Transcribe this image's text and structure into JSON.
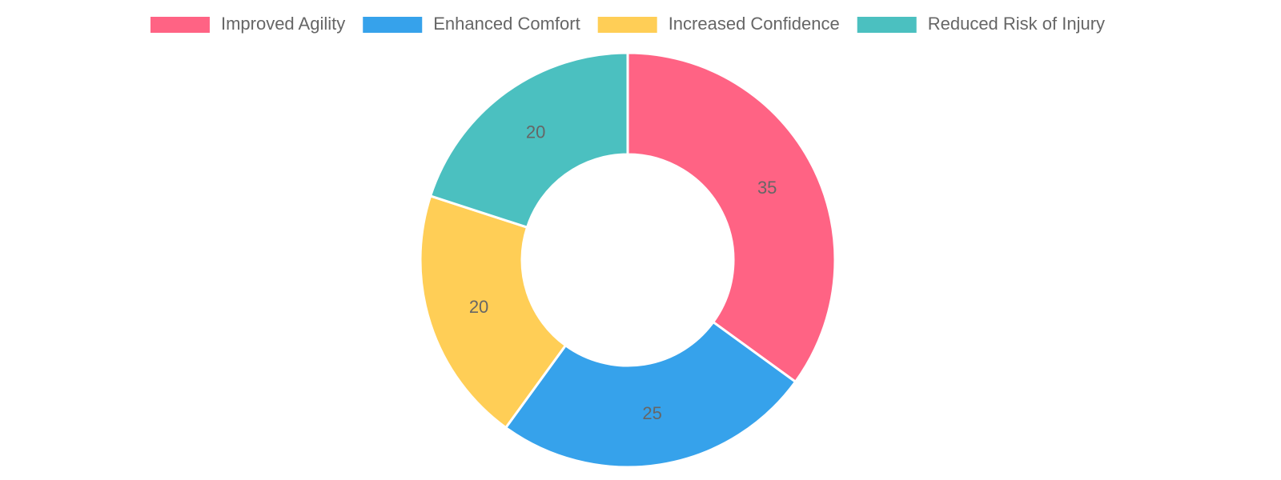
{
  "chart_data": {
    "type": "doughnut",
    "categories": [
      "Improved Agility",
      "Enhanced Comfort",
      "Increased Confidence",
      "Reduced Risk of Injury"
    ],
    "values": [
      35,
      25,
      20,
      20
    ],
    "colors": [
      "#ff6384",
      "#36a2eb",
      "#ffce56",
      "#4bc0c0"
    ],
    "legend": "top"
  }
}
